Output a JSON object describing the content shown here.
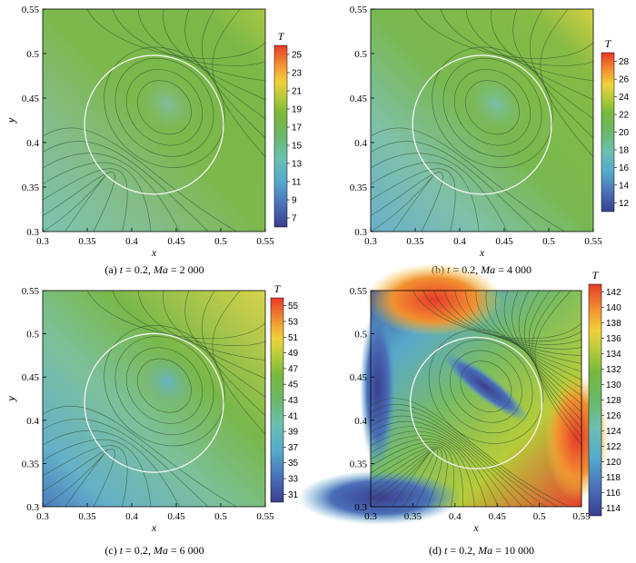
{
  "chart_data": [
    {
      "type": "heatmap",
      "caption": {
        "pre": "(a) ",
        "t_sym": "t",
        "t_val": " = 0.2, ",
        "ma_sym": "Ma",
        "ma_val": " = 2 000"
      },
      "xlabel": "x",
      "ylabel": "y",
      "xticks": [
        "0.3",
        "0.35",
        "0.4",
        "0.45",
        "0.5",
        "0.55"
      ],
      "yticks": [
        "0.3",
        "0.35",
        "0.4",
        "0.45",
        "0.5",
        "0.55"
      ],
      "xlim": [
        0.3,
        0.55
      ],
      "ylim": [
        0.3,
        0.55
      ],
      "colorbar": {
        "title": "T",
        "ticks": [
          25,
          23,
          21,
          19,
          17,
          15,
          13,
          11,
          9,
          7
        ],
        "range": [
          6,
          26
        ]
      },
      "field": {
        "base": 16.5,
        "core": 14.5,
        "corner_low": 9,
        "corner_high": 21
      },
      "circle": {
        "cx": 0.425,
        "cy": 0.42,
        "r": 0.078
      }
    },
    {
      "type": "heatmap",
      "caption": {
        "pre": "(b) ",
        "t_sym": "t",
        "t_val": " = 0.2, ",
        "ma_sym": "Ma",
        "ma_val": " = 4 000"
      },
      "xlabel": "x",
      "ylabel": "y",
      "xticks": [
        "0.3",
        "0.35",
        "0.4",
        "0.45",
        "0.5",
        "0.55"
      ],
      "yticks": [
        "0.3",
        "0.35",
        "0.4",
        "0.45",
        "0.5",
        "0.55"
      ],
      "xlim": [
        0.3,
        0.55
      ],
      "ylim": [
        0.3,
        0.55
      ],
      "colorbar": {
        "title": "T",
        "ticks": [
          28,
          26,
          24,
          22,
          20,
          18,
          16,
          14,
          12
        ],
        "range": [
          11,
          29
        ]
      },
      "field": {
        "base": 20.5,
        "core": 17.5,
        "corner_low": 14,
        "corner_high": 25
      },
      "circle": {
        "cx": 0.425,
        "cy": 0.42,
        "r": 0.078
      }
    },
    {
      "type": "heatmap",
      "caption": {
        "pre": "(c) ",
        "t_sym": "t",
        "t_val": " = 0.2, ",
        "ma_sym": "Ma",
        "ma_val": " = 6 000"
      },
      "xlabel": "x",
      "ylabel": "y",
      "xticks": [
        "0.3",
        "0.35",
        "0.4",
        "0.45",
        "0.5",
        "0.55"
      ],
      "yticks": [
        "0.3",
        "0.35",
        "0.4",
        "0.45",
        "0.5",
        "0.55"
      ],
      "xlim": [
        0.3,
        0.55
      ],
      "ylim": [
        0.3,
        0.55
      ],
      "colorbar": {
        "title": "T",
        "ticks": [
          55,
          53,
          51,
          49,
          47,
          45,
          43,
          41,
          39,
          37,
          35,
          33,
          31
        ],
        "range": [
          30,
          56
        ]
      },
      "field": {
        "base": 43,
        "core": 38.5,
        "corner_low": 31,
        "corner_high": 51
      },
      "circle": {
        "cx": 0.425,
        "cy": 0.42,
        "r": 0.078
      }
    },
    {
      "type": "heatmap",
      "caption": {
        "pre": "(d) ",
        "t_sym": "t",
        "t_val": " = 0.2, ",
        "ma_sym": "Ma",
        "ma_val": " = 10 000"
      },
      "xlabel": "x",
      "ylabel": "y",
      "xticks": [
        "0.3",
        "0.35",
        "0.4",
        "0.45",
        "0.5",
        "0.55"
      ],
      "yticks": [
        "0.3",
        "0.35",
        "0.4",
        "0.45",
        "0.5",
        "0.55"
      ],
      "xlim": [
        0.3,
        0.55
      ],
      "ylim": [
        0.3,
        0.55
      ],
      "colorbar": {
        "title": "T",
        "ticks": [
          142,
          140,
          138,
          136,
          134,
          132,
          130,
          128,
          126,
          124,
          122,
          120,
          118,
          116,
          114
        ],
        "range": [
          113,
          143
        ]
      },
      "field": {
        "base": 127,
        "core": 116,
        "corner_low": 114,
        "corner_high": 142
      },
      "circle": {
        "cx": 0.425,
        "cy": 0.42,
        "r": 0.078
      }
    }
  ]
}
